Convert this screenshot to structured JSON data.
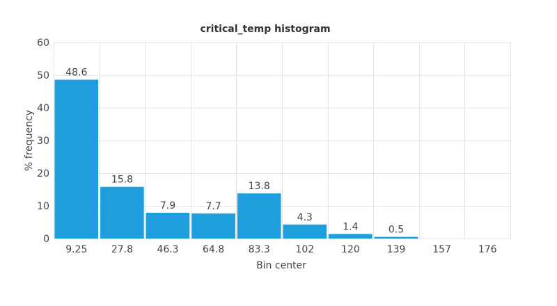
{
  "chart_data": {
    "type": "bar",
    "title": "critical_temp histogram",
    "xlabel": "Bin center",
    "ylabel": "% frequency",
    "ylim": [
      0,
      60
    ],
    "yticks": [
      0,
      10,
      20,
      30,
      40,
      50,
      60
    ],
    "categories": [
      "9.25",
      "27.8",
      "46.3",
      "64.8",
      "83.3",
      "102",
      "120",
      "139",
      "157",
      "176"
    ],
    "values": [
      48.6,
      15.8,
      7.9,
      7.7,
      13.8,
      4.3,
      1.4,
      0.5,
      0.0,
      0.0
    ],
    "data_labels": [
      "48.6",
      "15.8",
      "7.9",
      "7.7",
      "13.8",
      "4.3",
      "1.4",
      "0.5",
      "",
      ""
    ],
    "bar_color": "#1f9ede",
    "grid": true,
    "legend": "none"
  }
}
